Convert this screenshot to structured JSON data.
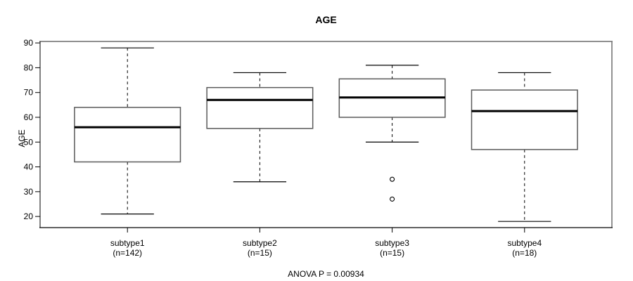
{
  "colors": {
    "background": "#ffffff",
    "stroke": "#000000",
    "text": "#000000",
    "median": "#000000",
    "box_border": "#5a5a5a",
    "box_fill": "#ffffff",
    "frame_top": "#909090",
    "frame_side": "#6e6e6e"
  },
  "chart_data": {
    "type": "boxplot",
    "title": "AGE",
    "ylabel": "AGE",
    "xlabel": "",
    "annotation": "ANOVA P = 0.00934",
    "grid": false,
    "legend": null,
    "ylim": [
      15.5,
      90.6
    ],
    "yticks": [
      20,
      30,
      40,
      50,
      60,
      70,
      80,
      90
    ],
    "groups": [
      {
        "label": "subtype1",
        "count_label": "(n=142)",
        "n": 142,
        "whisker_low": 21,
        "q1": 42,
        "median": 56,
        "q3": 64,
        "whisker_high": 88,
        "outliers": []
      },
      {
        "label": "subtype2",
        "count_label": "(n=15)",
        "n": 15,
        "whisker_low": 34,
        "q1": 55.5,
        "median": 67,
        "q3": 72,
        "whisker_high": 78,
        "outliers": []
      },
      {
        "label": "subtype3",
        "count_label": "(n=15)",
        "n": 15,
        "whisker_low": 50,
        "q1": 60,
        "median": 68,
        "q3": 75.5,
        "whisker_high": 81,
        "outliers": [
          35,
          27
        ]
      },
      {
        "label": "subtype4",
        "count_label": "(n=18)",
        "n": 18,
        "whisker_low": 18,
        "q1": 47,
        "median": 62.5,
        "q3": 71,
        "whisker_high": 78,
        "outliers": []
      }
    ]
  }
}
